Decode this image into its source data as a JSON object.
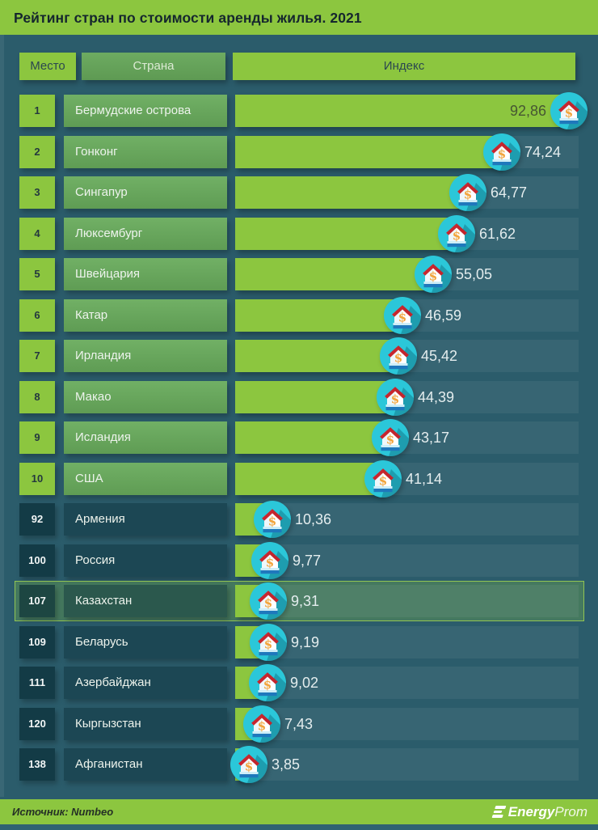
{
  "header": {
    "title": "Рейтинг стран по стоимости аренды жилья. 2021"
  },
  "table": {
    "columns": {
      "place": "Место",
      "country": "Страна",
      "index": "Индекс"
    }
  },
  "chart_data": {
    "type": "bar",
    "orientation": "horizontal",
    "title": "Рейтинг стран по стоимости аренды жилья. 2021",
    "columns": [
      "Место",
      "Страна",
      "Индекс"
    ],
    "value_scale": {
      "min": 0,
      "max": 100
    },
    "highlighted_country": "Казахстан",
    "source": "Numbeo",
    "rows": [
      {
        "rank": "1",
        "country": "Бермудские острова",
        "value": 92.86,
        "value_label": "92,86",
        "group": "top",
        "value_inside": true
      },
      {
        "rank": "2",
        "country": "Гонконг",
        "value": 74.24,
        "value_label": "74,24",
        "group": "top"
      },
      {
        "rank": "3",
        "country": "Сингапур",
        "value": 64.77,
        "value_label": "64,77",
        "group": "top"
      },
      {
        "rank": "4",
        "country": "Люксембург",
        "value": 61.62,
        "value_label": "61,62",
        "group": "top"
      },
      {
        "rank": "5",
        "country": "Швейцария",
        "value": 55.05,
        "value_label": "55,05",
        "group": "top"
      },
      {
        "rank": "6",
        "country": "Катар",
        "value": 46.59,
        "value_label": "46,59",
        "group": "top"
      },
      {
        "rank": "7",
        "country": "Ирландия",
        "value": 45.42,
        "value_label": "45,42",
        "group": "top"
      },
      {
        "rank": "8",
        "country": "Макао",
        "value": 44.39,
        "value_label": "44,39",
        "group": "top"
      },
      {
        "rank": "9",
        "country": "Исландия",
        "value": 43.17,
        "value_label": "43,17",
        "group": "top"
      },
      {
        "rank": "10",
        "country": "США",
        "value": 41.14,
        "value_label": "41,14",
        "group": "top"
      },
      {
        "rank": "92",
        "country": "Армения",
        "value": 10.36,
        "value_label": "10,36",
        "group": "bottom"
      },
      {
        "rank": "100",
        "country": "Россия",
        "value": 9.77,
        "value_label": "9,77",
        "group": "bottom"
      },
      {
        "rank": "107",
        "country": "Казахстан",
        "value": 9.31,
        "value_label": "9,31",
        "group": "bottom",
        "highlight": true
      },
      {
        "rank": "109",
        "country": "Беларусь",
        "value": 9.19,
        "value_label": "9,19",
        "group": "bottom"
      },
      {
        "rank": "111",
        "country": "Азербайджан",
        "value": 9.02,
        "value_label": "9,02",
        "group": "bottom"
      },
      {
        "rank": "120",
        "country": "Кыргызстан",
        "value": 7.43,
        "value_label": "7,43",
        "group": "bottom"
      },
      {
        "rank": "138",
        "country": "Афганистан",
        "value": 3.85,
        "value_label": "3,85",
        "group": "bottom"
      }
    ]
  },
  "footer": {
    "source_label": "Источник: Numbeo",
    "brand_bold": "Energy",
    "brand_light": "Prom"
  },
  "icons": {
    "house_dollar": "house-dollar-icon",
    "dollar_glyph": "$",
    "brand_e": "energyprom-e-icon"
  },
  "colors": {
    "accent_green": "#8cc63f",
    "background_teal": "#2b5c6b",
    "icon_cyan": "#2bc7d9",
    "muted_green": "#66a35a",
    "dark_cell": "#1a4450",
    "value_text": "#e4edee",
    "roof_red": "#c8272e",
    "base_blue": "#1f78bc",
    "dollar_orange": "#f2a43b"
  }
}
